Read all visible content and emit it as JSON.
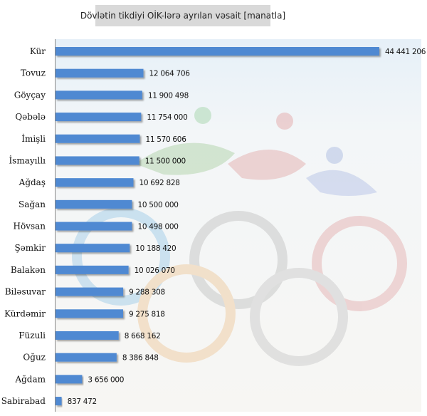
{
  "chart_data": {
    "type": "bar",
    "orientation": "horizontal",
    "title": "Dövlətin tikdiyi OİK-lərə ayrılan vəsait [manatla]",
    "categories": [
      "Kür",
      "Tovuz",
      "Göyçay",
      "Qəbələ",
      "İmişli",
      "İsmayıllı",
      "Ağdaş",
      "Sağan",
      "Hövsan",
      "Şəmkir",
      "Balakən",
      "Biləsuvar",
      "Kürdəmir",
      "Füzuli",
      "Oğuz",
      "Ağdam",
      "Sabirabad"
    ],
    "values": [
      44441206,
      12064706,
      11900498,
      11754000,
      11570606,
      11500000,
      10692828,
      10500000,
      10498000,
      10188420,
      10026070,
      9288308,
      9275818,
      8668162,
      8386848,
      3656000,
      837472
    ],
    "value_labels": [
      "44 441 206",
      "12 064 706",
      "11 900 498",
      "11 754 000",
      "11 570 606",
      "11 500 000",
      "10 692 828",
      "10 500 000",
      "10 498 000",
      "10 188 420",
      "10 026 070",
      "9 288 308",
      "9 275 818",
      "8 668 162",
      "8 386 848",
      "3 656 000",
      "837 472"
    ],
    "bar_color": "#4f89d2",
    "grid": false,
    "legend": "none",
    "background": "faded Olympic rings photo"
  }
}
